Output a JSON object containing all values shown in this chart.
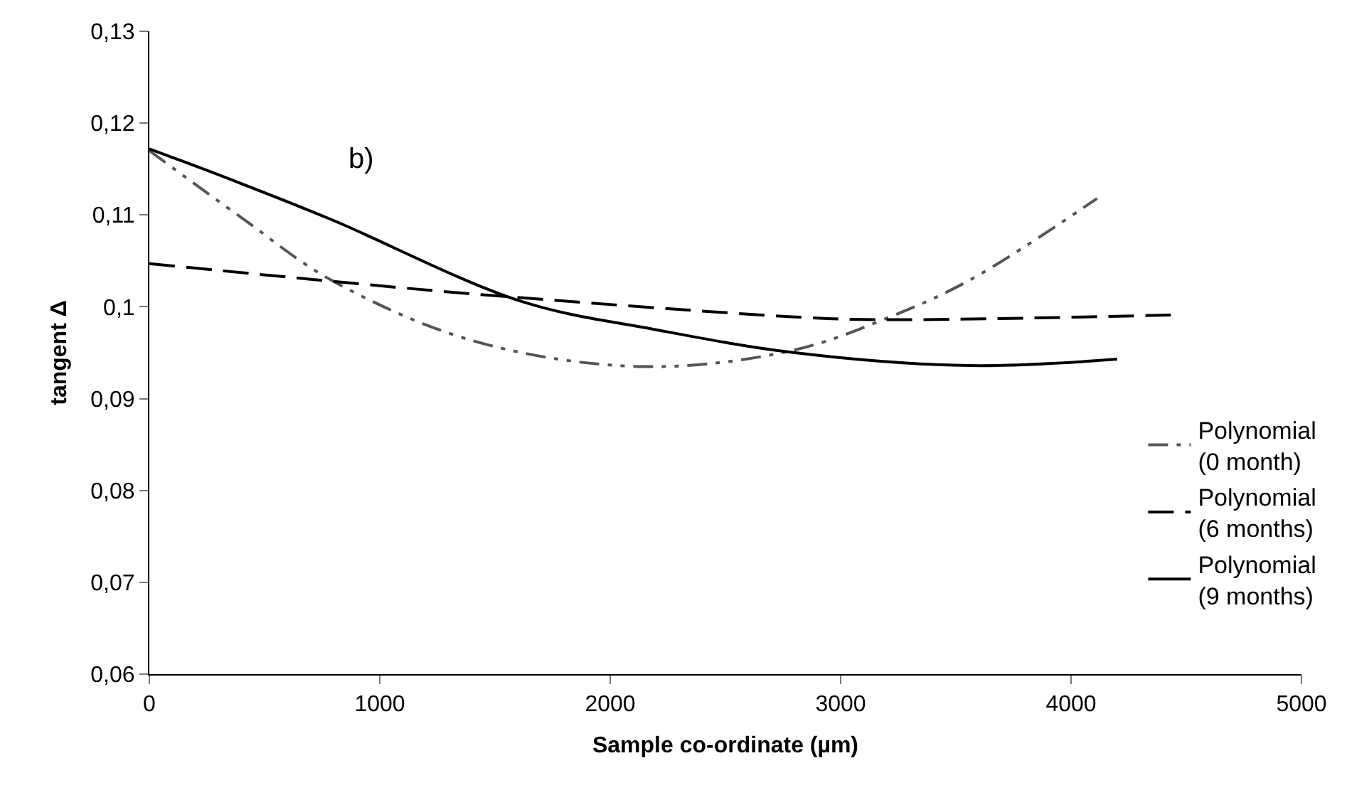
{
  "chart_data": {
    "type": "line",
    "xlabel": "Sample co-ordinate (µm)",
    "ylabel": "tangent Δ",
    "annotations": [
      "b)"
    ],
    "series": [
      {
        "name": "Polynomial (0 month)",
        "color": "#555555",
        "line_style": "dashdot",
        "x": [
          0,
          400,
          790,
          1405,
          2125,
          2783,
          3214,
          3560,
          4113
        ],
        "values": [
          0.117,
          0.1097,
          0.1029,
          0.0963,
          0.0935,
          0.0952,
          0.0989,
          0.1029,
          0.1118
        ]
      },
      {
        "name": "Polynomial (6 months)",
        "color": "#000000",
        "line_style": "dashed",
        "x": [
          0,
          700,
          1405,
          2802,
          3152,
          4433
        ],
        "values": [
          0.1047,
          0.103,
          0.1014,
          0.0989,
          0.0986,
          0.0991
        ]
      },
      {
        "name": "Polynomial (9 months)",
        "color": "#000000",
        "line_style": "solid",
        "x": [
          0,
          380,
          790,
          1613,
          2200,
          2802,
          3560,
          4200
        ],
        "values": [
          0.1172,
          0.1136,
          0.1095,
          0.1006,
          0.0975,
          0.095,
          0.0936,
          0.0943
        ]
      }
    ],
    "xlim": [
      0,
      5000
    ],
    "xticks": [
      0,
      1000,
      2000,
      3000,
      4000,
      5000
    ],
    "ylim": [
      0.06,
      0.13
    ],
    "yticks": [
      {
        "value": 0.06,
        "label": "0,06"
      },
      {
        "value": 0.07,
        "label": "0,07"
      },
      {
        "value": 0.08,
        "label": "0,08"
      },
      {
        "value": 0.09,
        "label": "0,09"
      },
      {
        "value": 0.1,
        "label": "0,1"
      },
      {
        "value": 0.11,
        "label": "0,11"
      },
      {
        "value": 0.12,
        "label": "0,12"
      },
      {
        "value": 0.13,
        "label": "0,13"
      }
    ],
    "grid": false,
    "legend": "right",
    "marker": "none"
  }
}
